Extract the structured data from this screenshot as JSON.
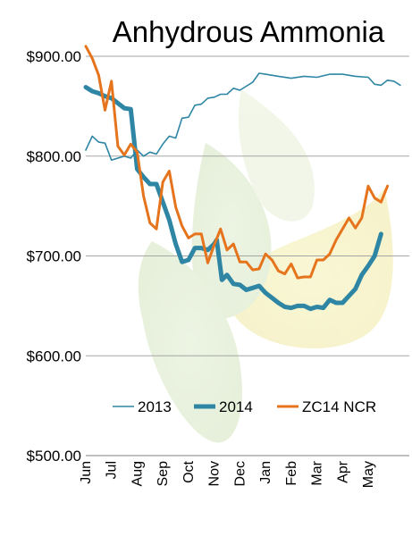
{
  "chart_data": {
    "type": "line",
    "title": "Anhydrous Ammonia",
    "xlabel": "",
    "ylabel": "",
    "ylim": [
      500,
      900
    ],
    "y_ticks": [
      "$500.00",
      "$600.00",
      "$700.00",
      "$800.00",
      "$900.00"
    ],
    "y_tick_values": [
      500,
      600,
      700,
      800,
      900
    ],
    "x_ticks": [
      "Jun",
      "Jul",
      "Aug",
      "Sep",
      "Oct",
      "Nov",
      "Dec",
      "Jan",
      "Feb",
      "Mar",
      "Apr",
      "May"
    ],
    "x_range": [
      0,
      12.6
    ],
    "grid": "horizontal",
    "legend_position": "bottom",
    "series": [
      {
        "name": "2013",
        "color": "#2e86a4",
        "width": 1.6,
        "points": [
          [
            0.0,
            806
          ],
          [
            0.25,
            820
          ],
          [
            0.5,
            814
          ],
          [
            0.75,
            813
          ],
          [
            1.0,
            796
          ],
          [
            1.25,
            798
          ],
          [
            1.5,
            800
          ],
          [
            1.75,
            798
          ],
          [
            2.0,
            806
          ],
          [
            2.25,
            800
          ],
          [
            2.5,
            804
          ],
          [
            2.75,
            802
          ],
          [
            3.0,
            812
          ],
          [
            3.25,
            820
          ],
          [
            3.5,
            818
          ],
          [
            3.75,
            838
          ],
          [
            4.0,
            839
          ],
          [
            4.25,
            851
          ],
          [
            4.5,
            852
          ],
          [
            4.75,
            858
          ],
          [
            5.0,
            859
          ],
          [
            5.25,
            862
          ],
          [
            5.5,
            862
          ],
          [
            5.75,
            868
          ],
          [
            6.0,
            866
          ],
          [
            6.25,
            870
          ],
          [
            6.5,
            874
          ],
          [
            6.75,
            883
          ],
          [
            7.0,
            882
          ],
          [
            7.5,
            880
          ],
          [
            8.0,
            878
          ],
          [
            8.5,
            880
          ],
          [
            9.0,
            879
          ],
          [
            9.5,
            882
          ],
          [
            10.0,
            882
          ],
          [
            10.5,
            880
          ],
          [
            11.0,
            879
          ],
          [
            11.25,
            872
          ],
          [
            11.5,
            871
          ],
          [
            11.75,
            876
          ],
          [
            12.0,
            875
          ],
          [
            12.25,
            871
          ]
        ]
      },
      {
        "name": "2014",
        "color": "#2e86a4",
        "width": 5,
        "points": [
          [
            0.0,
            869
          ],
          [
            0.25,
            865
          ],
          [
            0.5,
            863
          ],
          [
            0.75,
            860
          ],
          [
            1.0,
            858
          ],
          [
            1.25,
            853
          ],
          [
            1.5,
            848
          ],
          [
            1.75,
            847
          ],
          [
            2.0,
            787
          ],
          [
            2.25,
            779
          ],
          [
            2.5,
            772
          ],
          [
            2.75,
            772
          ],
          [
            3.0,
            754
          ],
          [
            3.25,
            736
          ],
          [
            3.5,
            712
          ],
          [
            3.75,
            694
          ],
          [
            4.0,
            696
          ],
          [
            4.25,
            708
          ],
          [
            4.5,
            708
          ],
          [
            4.75,
            706
          ],
          [
            5.0,
            712
          ],
          [
            5.1,
            716
          ],
          [
            5.3,
            676
          ],
          [
            5.5,
            681
          ],
          [
            5.75,
            672
          ],
          [
            6.0,
            671
          ],
          [
            6.25,
            666
          ],
          [
            6.5,
            668
          ],
          [
            6.75,
            670
          ],
          [
            7.0,
            663
          ],
          [
            7.25,
            658
          ],
          [
            7.5,
            653
          ],
          [
            7.75,
            649
          ],
          [
            8.0,
            648
          ],
          [
            8.25,
            650
          ],
          [
            8.5,
            650
          ],
          [
            8.75,
            647
          ],
          [
            9.0,
            649
          ],
          [
            9.25,
            648
          ],
          [
            9.5,
            656
          ],
          [
            9.75,
            653
          ],
          [
            10.0,
            653
          ],
          [
            10.25,
            660
          ],
          [
            10.5,
            667
          ],
          [
            10.75,
            681
          ],
          [
            11.0,
            690
          ],
          [
            11.25,
            700
          ],
          [
            11.5,
            722
          ]
        ]
      },
      {
        "name": "ZC14 NCR",
        "color": "#e5741d",
        "width": 3,
        "points": [
          [
            0.0,
            910
          ],
          [
            0.25,
            898
          ],
          [
            0.5,
            881
          ],
          [
            0.75,
            846
          ],
          [
            1.0,
            875
          ],
          [
            1.25,
            810
          ],
          [
            1.5,
            801
          ],
          [
            1.75,
            812
          ],
          [
            2.0,
            804
          ],
          [
            2.25,
            760
          ],
          [
            2.5,
            733
          ],
          [
            2.75,
            727
          ],
          [
            3.0,
            774
          ],
          [
            3.25,
            785
          ],
          [
            3.5,
            749
          ],
          [
            3.75,
            730
          ],
          [
            4.0,
            718
          ],
          [
            4.25,
            722
          ],
          [
            4.5,
            722
          ],
          [
            4.75,
            693
          ],
          [
            5.0,
            711
          ],
          [
            5.25,
            727
          ],
          [
            5.5,
            706
          ],
          [
            5.75,
            712
          ],
          [
            6.0,
            694
          ],
          [
            6.25,
            694
          ],
          [
            6.5,
            686
          ],
          [
            6.75,
            687
          ],
          [
            7.0,
            702
          ],
          [
            7.25,
            696
          ],
          [
            7.5,
            685
          ],
          [
            7.75,
            682
          ],
          [
            8.0,
            692
          ],
          [
            8.25,
            678
          ],
          [
            8.5,
            679
          ],
          [
            8.75,
            679
          ],
          [
            9.0,
            696
          ],
          [
            9.25,
            696
          ],
          [
            9.5,
            702
          ],
          [
            9.75,
            716
          ],
          [
            10.0,
            727
          ],
          [
            10.25,
            738
          ],
          [
            10.5,
            728
          ],
          [
            10.75,
            738
          ],
          [
            11.0,
            770
          ],
          [
            11.25,
            758
          ],
          [
            11.5,
            754
          ],
          [
            11.75,
            770
          ]
        ]
      }
    ]
  }
}
